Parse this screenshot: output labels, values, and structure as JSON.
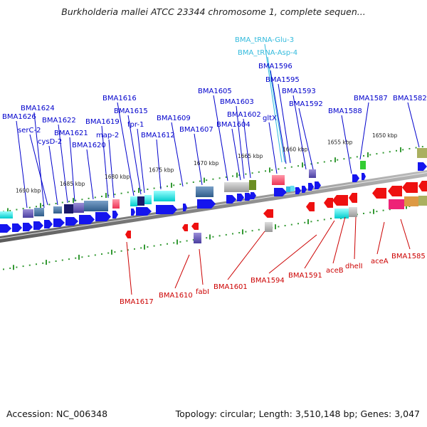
{
  "title": "Burkholderia mallei ATCC 23344 chromosome 1, complete sequen...",
  "footer": {
    "accession": "Accession: NC_006348",
    "summary": "Topology: circular; Length: 3,510,148 bp; Genes: 3,047"
  },
  "colors": {
    "forward_label": "#0000cc",
    "reverse_label": "#cc0000",
    "rna_label": "#33bbdd",
    "forward_gene": "#1515ee",
    "reverse_gene": "#ee1010",
    "backbone": "#888888",
    "tick": "#339933"
  },
  "scale_labels": [
    "1690 kbp",
    "1685 kbp",
    "1680 kbp",
    "1675 kbp",
    "1670 kbp",
    "1665 kbp",
    "1660 kbp",
    "1655 kbp",
    "1650 kbp"
  ],
  "forward_labels": [
    "BMA1626",
    "BMA1624",
    "serC-2",
    "cysD-2",
    "BMA1622",
    "BMA1621",
    "BMA1620",
    "BMA1619",
    "map-2",
    "BMA1616",
    "BMA1615",
    "fpr-1",
    "BMA1612",
    "BMA1609",
    "BMA1607",
    "BMA1605",
    "BMA1603",
    "BMA1604",
    "BMA1602",
    "gltX",
    "BMA1596",
    "BMA1595",
    "BMA1593",
    "BMA1592",
    "BMA1588",
    "BMA1587",
    "BMA1582"
  ],
  "rna_labels": [
    "BMA_tRNA-Glu-3",
    "BMA_tRNA-Asp-4"
  ],
  "reverse_labels": [
    "BMA1617",
    "BMA1610",
    "fabI",
    "BMA1601",
    "BMA1594",
    "BMA1591",
    "aceB",
    "dhelI",
    "aceA",
    "BMA1585"
  ]
}
